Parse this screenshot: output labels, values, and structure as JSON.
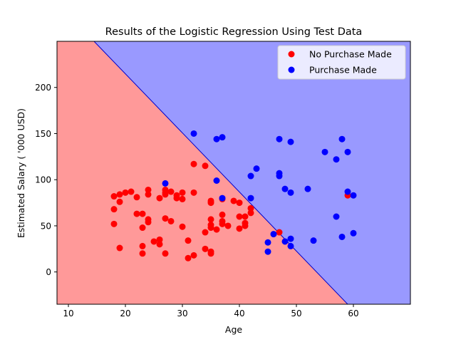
{
  "chart_data": {
    "type": "scatter",
    "title": "Results of the Logistic Regression Using Test Data",
    "xlabel": "Age",
    "ylabel": "Estimated Salary ( '000 USD)",
    "xlim": [
      8,
      70
    ],
    "ylim": [
      -35,
      250
    ],
    "xticks": [
      "10",
      "20",
      "30",
      "40",
      "50",
      "60"
    ],
    "yticks": [
      "0",
      "50",
      "100",
      "150",
      "200"
    ],
    "grid": false,
    "legend_position": "top-right",
    "decision_boundary": [
      [
        14.5,
        250
      ],
      [
        59,
        -35
      ]
    ],
    "regions": [
      {
        "name": "No Purchase Made",
        "color": "#ff9999"
      },
      {
        "name": "Purchase Made",
        "color": "#9999ff"
      }
    ],
    "series": [
      {
        "name": "No Purchase Made",
        "color": "#ff0000",
        "points": [
          [
            18,
            82
          ],
          [
            18,
            68
          ],
          [
            18,
            52
          ],
          [
            19,
            84
          ],
          [
            19,
            76
          ],
          [
            19,
            26
          ],
          [
            20,
            86
          ],
          [
            21,
            87
          ],
          [
            22,
            81
          ],
          [
            22,
            63
          ],
          [
            23,
            63
          ],
          [
            23,
            48
          ],
          [
            23,
            28
          ],
          [
            23,
            20
          ],
          [
            24,
            89
          ],
          [
            24,
            84
          ],
          [
            24,
            57
          ],
          [
            24,
            54
          ],
          [
            25,
            33
          ],
          [
            26,
            80
          ],
          [
            26,
            35
          ],
          [
            26,
            30
          ],
          [
            27,
            89
          ],
          [
            27,
            86
          ],
          [
            27,
            84
          ],
          [
            27,
            58
          ],
          [
            27,
            20
          ],
          [
            28,
            87
          ],
          [
            28,
            55
          ],
          [
            29,
            83
          ],
          [
            29,
            80
          ],
          [
            30,
            86
          ],
          [
            30,
            79
          ],
          [
            30,
            49
          ],
          [
            31,
            34
          ],
          [
            31,
            15
          ],
          [
            32,
            117
          ],
          [
            32,
            86
          ],
          [
            32,
            18
          ],
          [
            34,
            115
          ],
          [
            34,
            43
          ],
          [
            34,
            25
          ],
          [
            35,
            77
          ],
          [
            35,
            75
          ],
          [
            35,
            57
          ],
          [
            35,
            51
          ],
          [
            35,
            48
          ],
          [
            35,
            22
          ],
          [
            35,
            20
          ],
          [
            36,
            46
          ],
          [
            37,
            79
          ],
          [
            37,
            62
          ],
          [
            37,
            55
          ],
          [
            37,
            52
          ],
          [
            38,
            50
          ],
          [
            39,
            77
          ],
          [
            40,
            75
          ],
          [
            40,
            60
          ],
          [
            40,
            47
          ],
          [
            41,
            60
          ],
          [
            41,
            53
          ],
          [
            41,
            50
          ],
          [
            42,
            69
          ],
          [
            42,
            64
          ],
          [
            47,
            43
          ],
          [
            59,
            83
          ]
        ]
      },
      {
        "name": "Purchase Made",
        "color": "#0000ff",
        "points": [
          [
            27,
            96
          ],
          [
            32,
            150
          ],
          [
            36,
            144
          ],
          [
            36,
            99
          ],
          [
            37,
            146
          ],
          [
            37,
            80
          ],
          [
            42,
            104
          ],
          [
            42,
            80
          ],
          [
            43,
            112
          ],
          [
            45,
            32
          ],
          [
            45,
            22
          ],
          [
            46,
            41
          ],
          [
            47,
            144
          ],
          [
            47,
            107
          ],
          [
            47,
            104
          ],
          [
            48,
            90
          ],
          [
            48,
            33
          ],
          [
            49,
            141
          ],
          [
            49,
            86
          ],
          [
            49,
            36
          ],
          [
            49,
            28
          ],
          [
            52,
            90
          ],
          [
            53,
            34
          ],
          [
            55,
            130
          ],
          [
            57,
            122
          ],
          [
            57,
            60
          ],
          [
            58,
            144
          ],
          [
            58,
            38
          ],
          [
            59,
            130
          ],
          [
            59,
            87
          ],
          [
            60,
            83
          ],
          [
            60,
            42
          ]
        ]
      }
    ]
  }
}
